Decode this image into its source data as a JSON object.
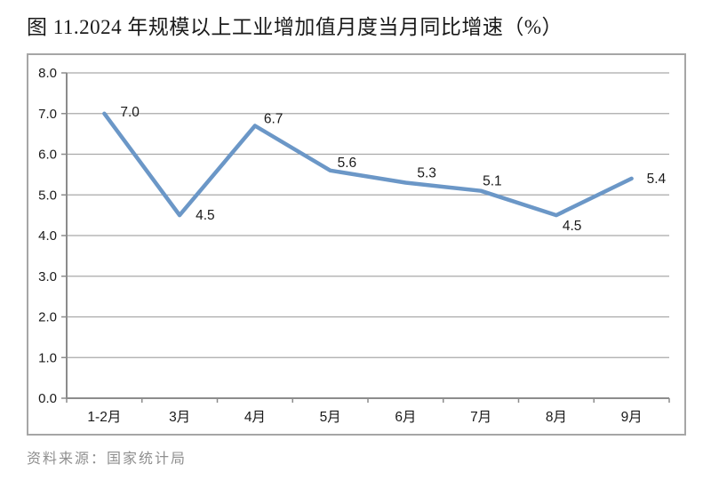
{
  "title": "图 11.2024 年规模以上工业增加值月度当月同比增速（%）",
  "source": "资料来源：国家统计局",
  "chart_data": {
    "type": "line",
    "title": "图 11.2024 年规模以上工业增加值月度当月同比增速（%）",
    "categories": [
      "1-2月",
      "3月",
      "4月",
      "5月",
      "6月",
      "7月",
      "8月",
      "9月"
    ],
    "values": [
      7.0,
      4.5,
      6.7,
      5.6,
      5.3,
      5.1,
      4.5,
      5.4
    ],
    "data_labels": [
      "7.0",
      "4.5",
      "6.7",
      "5.6",
      "5.3",
      "5.1",
      "4.5",
      "5.4"
    ],
    "xlabel": "",
    "ylabel": "",
    "ylim": [
      0.0,
      8.0
    ],
    "ytick_step": 1.0,
    "ytick_labels": [
      "0.0",
      "1.0",
      "2.0",
      "3.0",
      "4.0",
      "5.0",
      "6.0",
      "7.0",
      "8.0"
    ],
    "grid": true,
    "legend": "none",
    "markers": "none"
  },
  "colors": {
    "line": "#6b97c7",
    "gridline": "#a9a9a9",
    "axis": "#8c8c8c",
    "frame_border": "#a6a6a6",
    "title_text": "#1a1a1a",
    "label_text": "#1a1a1a",
    "source_text": "#8f8f8f",
    "background": "#ffffff"
  }
}
